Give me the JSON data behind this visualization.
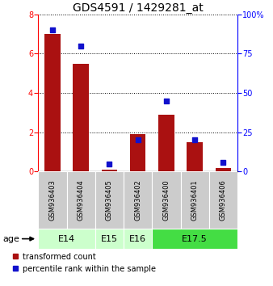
{
  "title": "GDS4591 / 1429281_at",
  "samples": [
    "GSM936403",
    "GSM936404",
    "GSM936405",
    "GSM936402",
    "GSM936400",
    "GSM936401",
    "GSM936406"
  ],
  "red_values": [
    7.0,
    5.5,
    0.1,
    1.9,
    2.9,
    1.5,
    0.2
  ],
  "blue_values_pct": [
    90,
    80,
    5,
    20,
    45,
    20,
    6
  ],
  "ylim_left": [
    0,
    8
  ],
  "ylim_right": [
    0,
    100
  ],
  "yticks_left": [
    0,
    2,
    4,
    6,
    8
  ],
  "yticks_right": [
    0,
    25,
    50,
    75,
    100
  ],
  "age_groups": [
    {
      "label": "E14",
      "start": 0,
      "end": 1,
      "color": "#ccffcc"
    },
    {
      "label": "E15",
      "start": 2,
      "end": 2,
      "color": "#ccffcc"
    },
    {
      "label": "E16",
      "start": 3,
      "end": 3,
      "color": "#ccffcc"
    },
    {
      "label": "E17.5",
      "start": 4,
      "end": 6,
      "color": "#44dd44"
    }
  ],
  "age_label": "age",
  "legend_red": "transformed count",
  "legend_blue": "percentile rank within the sample",
  "bar_color": "#aa1111",
  "dot_color": "#1111cc",
  "bg_sample_color": "#cccccc",
  "title_fontsize": 10,
  "tick_fontsize": 7,
  "sample_fontsize": 6,
  "age_fontsize": 8,
  "legend_fontsize": 7
}
